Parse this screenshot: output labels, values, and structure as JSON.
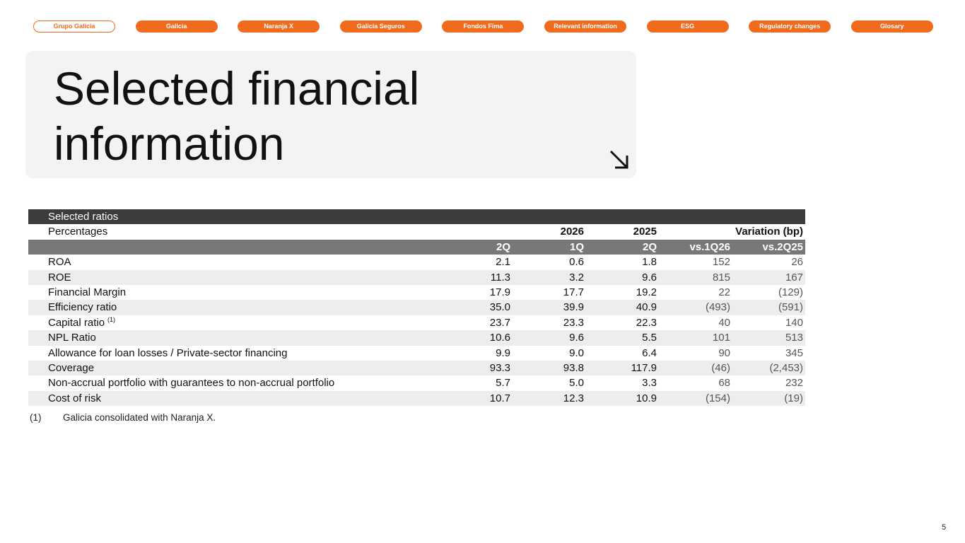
{
  "nav": [
    "Grupo Galicia",
    "Galicia",
    "Naranja X",
    "Galicia Seguros",
    "Fondos Fima",
    "Relevant information",
    "ESG",
    "Regulatory changes",
    "Glosary"
  ],
  "header": {
    "title_lines": [
      "Selected financial",
      "information"
    ]
  },
  "table": {
    "title": "Selected ratios",
    "unit": "Percentages",
    "year_headers": [
      "2026",
      "2025"
    ],
    "variation_header": "Variation (bp)",
    "columns": [
      "2Q",
      "1Q",
      "2Q",
      "vs.1Q26",
      "vs.2Q25"
    ],
    "rows": [
      {
        "label": "ROA",
        "values": [
          "2.1",
          "0.6",
          "1.8",
          "152",
          "26"
        ]
      },
      {
        "label": "ROE",
        "values": [
          "11.3",
          "3.2",
          "9.6",
          "815",
          "167"
        ]
      },
      {
        "label": "Financial Margin",
        "values": [
          "17.9",
          "17.7",
          "19.2",
          "22",
          "(129)"
        ]
      },
      {
        "label": "Efficiency ratio",
        "values": [
          "35.0",
          "39.9",
          "40.9",
          "(493)",
          "(591)"
        ]
      },
      {
        "label": "Capital ratio",
        "note": "(1)",
        "values": [
          "23.7",
          "23.3",
          "22.3",
          "40",
          "140"
        ]
      },
      {
        "label": "NPL Ratio",
        "values": [
          "10.6",
          "9.6",
          "5.5",
          "101",
          "513"
        ]
      },
      {
        "label": "Allowance for loan losses / Private-sector financing",
        "values": [
          "9.9",
          "9.0",
          "6.4",
          "90",
          "345"
        ]
      },
      {
        "label": "Coverage",
        "values": [
          "93.3",
          "93.8",
          "117.9",
          "(46)",
          "(2,453)"
        ]
      },
      {
        "label": "Non-accrual portfolio with guarantees to non-accrual portfolio",
        "values": [
          "5.7",
          "5.0",
          "3.3",
          "68",
          "232"
        ]
      },
      {
        "label": "Cost of risk",
        "values": [
          "10.7",
          "12.3",
          "10.9",
          "(154)",
          "(19)"
        ]
      }
    ]
  },
  "footnote": {
    "marker": "(1)",
    "text": "Galicia consolidated with Naranja X."
  },
  "page_number": "5"
}
